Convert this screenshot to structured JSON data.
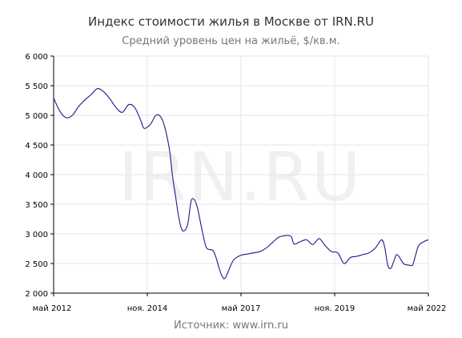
{
  "chart_data": {
    "type": "line",
    "title": "Индекс стоимости жилья в Москве от IRN.RU",
    "subtitle": "Средний уровень цен на жильё, $/кв.м.",
    "source": "Источник: www.irn.ru",
    "watermark": "IRN.RU",
    "xlabel": "",
    "ylabel": "",
    "ylim": [
      2000,
      6000
    ],
    "yticks": [
      2000,
      2500,
      3000,
      3500,
      4000,
      4500,
      5000,
      5500,
      6000
    ],
    "ytick_labels": [
      "2 000",
      "2 500",
      "3 000",
      "3 500",
      "4 000",
      "4 500",
      "5 000",
      "5 500",
      "6 000"
    ],
    "xlim": [
      "2012-05",
      "2022-05"
    ],
    "xticks": [
      "2012-05",
      "2014-11",
      "2017-05",
      "2019-11",
      "2022-05"
    ],
    "xtick_labels": [
      "май 2012",
      "ноя. 2014",
      "май 2017",
      "ноя. 2019",
      "май 2022"
    ],
    "grid": true,
    "line_color": "#1a1a8c",
    "series": [
      {
        "points": [
          [
            "2012-05",
            5290
          ],
          [
            "2012-07",
            5070
          ],
          [
            "2012-09",
            4960
          ],
          [
            "2012-11",
            5000
          ],
          [
            "2013-01",
            5150
          ],
          [
            "2013-03",
            5260
          ],
          [
            "2013-05",
            5350
          ],
          [
            "2013-07",
            5450
          ],
          [
            "2013-09",
            5400
          ],
          [
            "2013-11",
            5280
          ],
          [
            "2014-01",
            5130
          ],
          [
            "2014-03",
            5050
          ],
          [
            "2014-05",
            5180
          ],
          [
            "2014-07",
            5130
          ],
          [
            "2014-09",
            4900
          ],
          [
            "2014-10",
            4780
          ],
          [
            "2014-12",
            4850
          ],
          [
            "2015-02",
            5010
          ],
          [
            "2015-04",
            4900
          ],
          [
            "2015-06",
            4450
          ],
          [
            "2015-07",
            4000
          ],
          [
            "2015-08",
            3650
          ],
          [
            "2015-09",
            3300
          ],
          [
            "2015-10",
            3080
          ],
          [
            "2015-11",
            3060
          ],
          [
            "2015-12",
            3180
          ],
          [
            "2016-01",
            3550
          ],
          [
            "2016-02",
            3580
          ],
          [
            "2016-03",
            3450
          ],
          [
            "2016-04",
            3200
          ],
          [
            "2016-05",
            2950
          ],
          [
            "2016-06",
            2760
          ],
          [
            "2016-08",
            2720
          ],
          [
            "2016-09",
            2600
          ],
          [
            "2016-10",
            2420
          ],
          [
            "2016-11",
            2280
          ],
          [
            "2016-12",
            2260
          ],
          [
            "2017-02",
            2500
          ],
          [
            "2017-03",
            2580
          ],
          [
            "2017-05",
            2640
          ],
          [
            "2017-07",
            2660
          ],
          [
            "2017-09",
            2680
          ],
          [
            "2017-11",
            2700
          ],
          [
            "2018-01",
            2760
          ],
          [
            "2018-03",
            2850
          ],
          [
            "2018-05",
            2940
          ],
          [
            "2018-07",
            2970
          ],
          [
            "2018-09",
            2960
          ],
          [
            "2018-10",
            2830
          ],
          [
            "2018-12",
            2870
          ],
          [
            "2019-02",
            2900
          ],
          [
            "2019-04",
            2820
          ],
          [
            "2019-06",
            2920
          ],
          [
            "2019-08",
            2800
          ],
          [
            "2019-10",
            2700
          ],
          [
            "2019-12",
            2680
          ],
          [
            "2020-02",
            2500
          ],
          [
            "2020-04",
            2600
          ],
          [
            "2020-06",
            2620
          ],
          [
            "2020-08",
            2650
          ],
          [
            "2020-10",
            2680
          ],
          [
            "2020-12",
            2760
          ],
          [
            "2021-02",
            2900
          ],
          [
            "2021-03",
            2780
          ],
          [
            "2021-04",
            2470
          ],
          [
            "2021-05",
            2420
          ],
          [
            "2021-06",
            2550
          ],
          [
            "2021-07",
            2650
          ],
          [
            "2021-09",
            2500
          ],
          [
            "2021-10",
            2480
          ],
          [
            "2021-11",
            2470
          ],
          [
            "2021-12",
            2480
          ],
          [
            "2022-01",
            2660
          ],
          [
            "2022-02",
            2810
          ],
          [
            "2022-04",
            2880
          ],
          [
            "2022-05",
            2900
          ]
        ]
      }
    ]
  }
}
